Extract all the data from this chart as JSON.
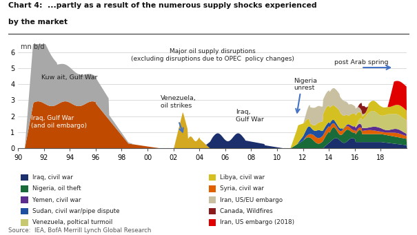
{
  "title_line1": "Chart 4:  ...partly as a result of the numerous supply shocks experienced",
  "title_line2": "by the market",
  "ylabel": "mn b/d",
  "source": "Source:  IEA, BofA Merrill Lynch Global Research",
  "xlim": [
    1990,
    2020
  ],
  "ylim": [
    0,
    6.5
  ],
  "yticks": [
    0,
    1,
    2,
    3,
    4,
    5,
    6
  ],
  "xtick_labels": [
    "90",
    "92",
    "94",
    "96",
    "98",
    "00",
    "02",
    "04",
    "06",
    "08",
    "10",
    "12",
    "14",
    "16",
    "18"
  ],
  "xtick_values": [
    1990,
    1992,
    1994,
    1996,
    1998,
    2000,
    2002,
    2004,
    2006,
    2008,
    2010,
    2012,
    2014,
    2016,
    2018
  ],
  "colors": {
    "kuwait_gulf_war": "#a8a8a8",
    "iraq_gulf_war_embargo": "#c04a00",
    "venezuela_strikes": "#d4a820",
    "iraq_civil_war": "#1a2f6b",
    "nigeria_oil_theft": "#1a6b3a",
    "yemen_civil_war": "#5b2d8e",
    "sudan_pipe": "#1f4fa0",
    "venezuela_turmoil": "#c8c870",
    "libya_civil_war": "#d4c020",
    "syria_civil_war": "#e06000",
    "iran_us_eu": "#c8c0a0",
    "canada_wildfires": "#8b1a1a",
    "iran_us_2018": "#e00000",
    "background": "#ffffff"
  },
  "legend_col1": [
    {
      "label": "Iraq, civil war",
      "color": "#1a2f6b"
    },
    {
      "label": "Nigeria, oil theft",
      "color": "#1a6b3a"
    },
    {
      "label": "Yemen, civil war",
      "color": "#5b2d8e"
    },
    {
      "label": "Sudan, civil war/pipe dispute",
      "color": "#1f4fa0"
    },
    {
      "label": "Venezuela, poltical turmoil",
      "color": "#c8c870"
    }
  ],
  "legend_col2": [
    {
      "label": "Libya, civil war",
      "color": "#d4c020"
    },
    {
      "label": "Syria, civil war",
      "color": "#e06000"
    },
    {
      "label": "Iran, US/EU embargo",
      "color": "#c8c0a0"
    },
    {
      "label": "Canada, Wildfires",
      "color": "#8b1a1a"
    },
    {
      "label": "Iran, US embargo (2018)",
      "color": "#e00000"
    }
  ]
}
